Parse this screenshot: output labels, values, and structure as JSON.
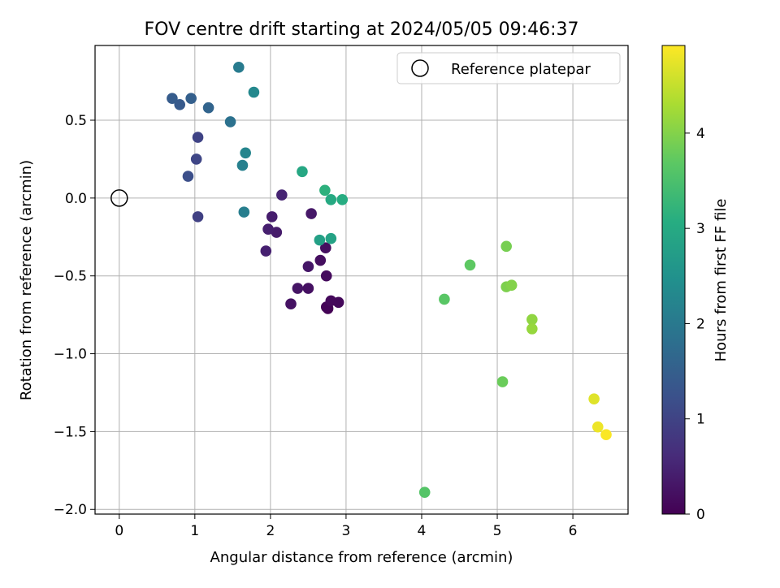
{
  "chart_data": {
    "type": "scatter",
    "title": "FOV centre drift starting at 2024/05/05 09:46:37",
    "xlabel": "Angular distance from reference (arcmin)",
    "ylabel": "Rotation from reference (arcmin)",
    "xlim": [
      -0.32,
      6.73
    ],
    "ylim": [
      -2.03,
      0.98
    ],
    "x_ticks": [
      0,
      1,
      2,
      3,
      4,
      5,
      6
    ],
    "x_tick_labels": [
      "0",
      "1",
      "2",
      "3",
      "4",
      "5",
      "6"
    ],
    "y_ticks": [
      -2.0,
      -1.5,
      -1.0,
      -0.5,
      0.0,
      0.5
    ],
    "y_tick_labels": [
      "−2.0",
      "−1.5",
      "−1.0",
      "−0.5",
      "0.0",
      "0.5"
    ],
    "grid": true,
    "legend": {
      "position": "top-right",
      "entries": [
        {
          "label": "Reference platepar",
          "marker": "open-circle",
          "color": "#000000"
        }
      ]
    },
    "reference_point": {
      "x": 0,
      "y": 0
    },
    "colorbar": {
      "label": "Hours from first FF file",
      "colormap": "viridis",
      "range": [
        0,
        4.92
      ],
      "ticks": [
        0,
        1,
        2,
        3,
        4
      ],
      "tick_labels": [
        "0",
        "1",
        "2",
        "3",
        "4"
      ]
    },
    "points": [
      {
        "x": 2.76,
        "y": -0.71,
        "h": 0.0
      },
      {
        "x": 2.74,
        "y": -0.7,
        "h": 0.05
      },
      {
        "x": 2.9,
        "y": -0.67,
        "h": 0.1
      },
      {
        "x": 2.8,
        "y": -0.66,
        "h": 0.12
      },
      {
        "x": 2.74,
        "y": -0.5,
        "h": 0.15
      },
      {
        "x": 2.66,
        "y": -0.4,
        "h": 0.18
      },
      {
        "x": 2.73,
        "y": -0.32,
        "h": 0.2
      },
      {
        "x": 2.5,
        "y": -0.58,
        "h": 0.22
      },
      {
        "x": 2.27,
        "y": -0.68,
        "h": 0.25
      },
      {
        "x": 2.36,
        "y": -0.58,
        "h": 0.28
      },
      {
        "x": 2.5,
        "y": -0.44,
        "h": 0.3
      },
      {
        "x": 2.54,
        "y": -0.1,
        "h": 0.33
      },
      {
        "x": 2.08,
        "y": -0.22,
        "h": 0.38
      },
      {
        "x": 2.02,
        "y": -0.12,
        "h": 0.4
      },
      {
        "x": 1.97,
        "y": -0.2,
        "h": 0.43
      },
      {
        "x": 1.94,
        "y": -0.34,
        "h": 0.45
      },
      {
        "x": 2.15,
        "y": 0.02,
        "h": 0.5
      },
      {
        "x": 1.04,
        "y": -0.12,
        "h": 0.95
      },
      {
        "x": 1.04,
        "y": 0.39,
        "h": 1.0
      },
      {
        "x": 1.02,
        "y": 0.25,
        "h": 1.05
      },
      {
        "x": 0.91,
        "y": 0.14,
        "h": 1.2
      },
      {
        "x": 0.8,
        "y": 0.6,
        "h": 1.4
      },
      {
        "x": 0.7,
        "y": 0.64,
        "h": 1.45
      },
      {
        "x": 0.95,
        "y": 0.64,
        "h": 1.5
      },
      {
        "x": 1.18,
        "y": 0.58,
        "h": 1.6
      },
      {
        "x": 1.47,
        "y": 0.49,
        "h": 1.85
      },
      {
        "x": 1.58,
        "y": 0.84,
        "h": 2.05
      },
      {
        "x": 1.65,
        "y": -0.09,
        "h": 2.1
      },
      {
        "x": 1.63,
        "y": 0.21,
        "h": 2.15
      },
      {
        "x": 1.67,
        "y": 0.29,
        "h": 2.25
      },
      {
        "x": 1.78,
        "y": 0.68,
        "h": 2.3
      },
      {
        "x": 2.65,
        "y": -0.27,
        "h": 2.8
      },
      {
        "x": 2.8,
        "y": -0.26,
        "h": 2.85
      },
      {
        "x": 2.42,
        "y": 0.17,
        "h": 2.95
      },
      {
        "x": 2.8,
        "y": -0.01,
        "h": 3.0
      },
      {
        "x": 2.95,
        "y": -0.01,
        "h": 3.05
      },
      {
        "x": 2.72,
        "y": 0.05,
        "h": 3.15
      },
      {
        "x": 4.04,
        "y": -1.89,
        "h": 3.6
      },
      {
        "x": 4.3,
        "y": -0.65,
        "h": 3.65
      },
      {
        "x": 4.64,
        "y": -0.43,
        "h": 3.7
      },
      {
        "x": 5.07,
        "y": -1.18,
        "h": 3.8
      },
      {
        "x": 5.12,
        "y": -0.31,
        "h": 3.9
      },
      {
        "x": 5.12,
        "y": -0.57,
        "h": 3.95
      },
      {
        "x": 5.19,
        "y": -0.56,
        "h": 4.0
      },
      {
        "x": 5.46,
        "y": -0.78,
        "h": 4.1
      },
      {
        "x": 5.46,
        "y": -0.84,
        "h": 4.15
      },
      {
        "x": 6.28,
        "y": -1.29,
        "h": 4.7
      },
      {
        "x": 6.33,
        "y": -1.47,
        "h": 4.8
      },
      {
        "x": 6.44,
        "y": -1.52,
        "h": 4.9
      }
    ]
  }
}
